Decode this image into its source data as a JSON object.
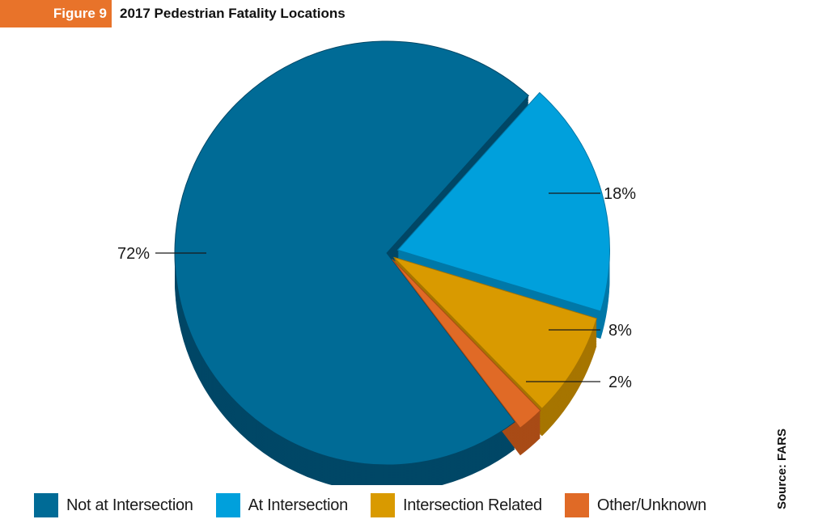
{
  "header": {
    "figure_label": "Figure 9",
    "title": "2017 Pedestrian Fatality Locations"
  },
  "source": "Source: FARS",
  "chart_data": {
    "type": "pie",
    "title": "2017 Pedestrian Fatality Locations",
    "legend_position": "bottom",
    "slices": [
      {
        "name": "Not at Intersection",
        "value": 72,
        "label": "72%",
        "color": "#006b96",
        "side_color": "#004766"
      },
      {
        "name": "At Intersection",
        "value": 18,
        "label": "18%",
        "color": "#00a0dc",
        "side_color": "#0078a8"
      },
      {
        "name": "Intersection Related",
        "value": 8,
        "label": "8%",
        "color": "#d99a00",
        "side_color": "#a67500"
      },
      {
        "name": "Other/Unknown",
        "value": 2,
        "label": "2%",
        "color": "#e06a26",
        "side_color": "#a84b16"
      }
    ]
  }
}
